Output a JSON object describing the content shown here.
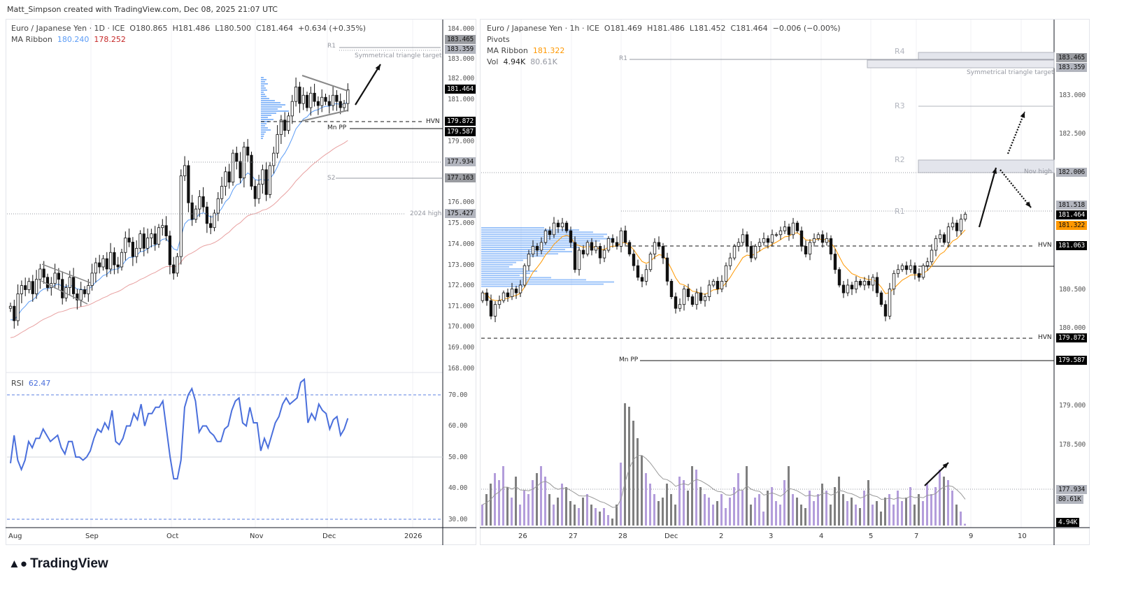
{
  "header": {
    "attribution": "Matt_Simpson created with TradingView.com, Dec 08, 2025 21:07 UTC"
  },
  "left_chart": {
    "legend": {
      "symbol": "Euro / Japanese Yen · 1D · ICE",
      "open": "O180.865",
      "high": "H181.486",
      "low": "L180.500",
      "close": "C181.464",
      "change": "+0.634 (+0.35%)"
    },
    "ma_ribbon": {
      "label": "MA Ribbon",
      "fast": "180.240",
      "slow": "178.252",
      "fast_color": "#5b9cf6",
      "slow_color": "#c62828"
    },
    "annotations": {
      "r1": "R1",
      "triangle_target": "Symmetrical triangle target",
      "hvn": "HVN",
      "mn_pp": "Mn PP",
      "s2": "S2",
      "high_2024": "2024 high"
    },
    "price_axis": [
      "184.000",
      "183.000",
      "182.000",
      "181.000",
      "179.000",
      "176.000",
      "175.000",
      "174.000",
      "173.000",
      "172.000",
      "171.000",
      "170.000",
      "169.000",
      "168.000"
    ],
    "badges": [
      {
        "value": "183.465",
        "style": "gray"
      },
      {
        "value": "183.359",
        "style": "lgray"
      },
      {
        "value": "181.464",
        "style": "dark"
      },
      {
        "value": "179.872",
        "style": "dark"
      },
      {
        "value": "179.587",
        "style": "dark"
      },
      {
        "value": "177.934",
        "style": "lgray"
      },
      {
        "value": "177.163",
        "style": "gray"
      },
      {
        "value": "175.427",
        "style": "lgray"
      }
    ],
    "rsi": {
      "label": "RSI",
      "value": "62.47",
      "color": "#4a6fdc",
      "axis": [
        "70.00",
        "60.00",
        "50.00",
        "40.00",
        "30.00"
      ]
    },
    "time_axis": [
      "Aug",
      "Sep",
      "Oct",
      "Nov",
      "Dec",
      "2026"
    ]
  },
  "right_chart": {
    "legend": {
      "symbol": "Euro / Japanese Yen · 1h · ICE",
      "open": "O181.469",
      "high": "H181.486",
      "low": "L181.452",
      "close": "C181.464",
      "change": "−0.006 (−0.00%)"
    },
    "pivots_label": "Pivots",
    "ma_ribbon": {
      "label": "MA Ribbon",
      "value": "181.322",
      "color": "#ff9800"
    },
    "volume": {
      "label": "Vol",
      "value": "4.94K",
      "ma": "80.61K"
    },
    "annotations": {
      "r4": "R4",
      "r3": "R3",
      "r2": "R2",
      "r1_top": "R1",
      "r1": "R1",
      "triangle_target": "Symmetrical triangle target",
      "nov_high": "Nov high",
      "hvn_1": "HVN",
      "hvn_2": "HVN",
      "mn_pp": "Mn PP"
    },
    "price_axis": [
      "183.000",
      "182.500",
      "180.500",
      "180.000",
      "179.000",
      "178.500"
    ],
    "badges": [
      {
        "value": "183.465",
        "style": "gray"
      },
      {
        "value": "183.359",
        "style": "lgray"
      },
      {
        "value": "182.006",
        "style": "lgray"
      },
      {
        "value": "181.518",
        "style": "lgray"
      },
      {
        "value": "181.464",
        "style": "dark"
      },
      {
        "value": "181.322",
        "style": "orange"
      },
      {
        "value": "181.063",
        "style": "dark"
      },
      {
        "value": "179.872",
        "style": "dark"
      },
      {
        "value": "179.587",
        "style": "dark"
      },
      {
        "value": "177.934",
        "style": "lgray"
      },
      {
        "value": "80.61K",
        "style": "lgray"
      },
      {
        "value": "4.94K",
        "style": "dark"
      }
    ],
    "time_axis": [
      "26",
      "27",
      "28",
      "Dec",
      "2",
      "3",
      "4",
      "5",
      "7",
      "9",
      "10"
    ]
  },
  "logo": "TradingView",
  "chart_data": [
    {
      "type": "candlestick",
      "title": "Euro / Japanese Yen · 1D · ICE",
      "x_range": [
        "Aug 2025",
        "Dec 08 2025"
      ],
      "ylim": [
        168,
        184
      ],
      "closes": [
        171.0,
        170.3,
        171.6,
        172.0,
        171.8,
        172.2,
        171.6,
        172.3,
        172.8,
        172.4,
        171.9,
        172.1,
        172.6,
        172.3,
        171.4,
        171.9,
        172.4,
        171.6,
        171.3,
        171.8,
        171.6,
        172.0,
        172.6,
        173.1,
        172.9,
        173.3,
        172.8,
        173.6,
        173.0,
        172.9,
        173.6,
        174.3,
        174.1,
        173.4,
        173.8,
        174.5,
        173.8,
        174.3,
        174.5,
        174.0,
        174.8,
        174.9,
        174.4,
        173.0,
        172.6,
        173.4,
        177.3,
        177.8,
        176.0,
        175.2,
        175.7,
        176.3,
        175.8,
        175.0,
        174.8,
        175.5,
        176.2,
        176.8,
        177.5,
        177.0,
        178.4,
        178.0,
        177.2,
        178.7,
        178.3,
        176.8,
        176.2,
        176.9,
        177.6,
        176.4,
        177.8,
        178.4,
        179.3,
        180.0,
        179.5,
        180.2,
        180.9,
        181.6,
        180.8,
        181.2,
        180.6,
        181.3,
        180.9,
        180.7,
        181.1,
        180.9,
        180.7,
        181.2,
        180.9,
        180.6,
        180.8,
        181.464
      ],
      "levels": {
        "R1": 183.359,
        "triangle_target": 183.465,
        "HVN": 179.872,
        "Mn PP": 179.587,
        "S2": 177.163,
        "2024 high": 175.427,
        "dotted": 177.934
      }
    },
    {
      "type": "line",
      "title": "RSI",
      "ylim": [
        25,
        78
      ],
      "bands": [
        30,
        50,
        70
      ],
      "values": [
        48,
        57,
        49,
        46,
        49,
        55,
        53,
        56,
        56,
        59,
        57,
        55,
        56,
        57,
        53,
        51,
        55,
        55,
        50,
        50,
        49,
        50,
        52,
        56,
        59,
        58,
        61,
        59,
        65,
        55,
        54,
        56,
        60,
        60,
        64,
        62,
        67,
        60,
        64,
        64,
        66,
        66,
        68,
        59,
        50,
        43,
        43,
        49,
        66,
        70,
        72,
        68,
        58,
        60,
        60,
        58,
        57,
        55,
        55,
        59,
        60,
        65,
        68,
        69,
        61,
        60,
        66,
        61,
        61,
        52,
        56,
        53,
        57,
        61,
        63,
        67,
        69,
        67,
        68,
        69,
        74,
        75,
        61,
        64,
        62,
        67,
        65,
        64,
        59,
        62,
        63,
        57,
        59,
        62.47
      ]
    },
    {
      "type": "candlestick",
      "title": "Euro / Japanese Yen · 1h · ICE",
      "x_range": [
        "Nov 25 2025",
        "Dec 08 2025 21:00"
      ],
      "ylim": [
        177.6,
        183.9
      ],
      "closes": [
        180.45,
        180.35,
        180.15,
        180.3,
        180.35,
        180.45,
        180.4,
        180.5,
        180.45,
        180.55,
        180.8,
        180.95,
        181.05,
        181.0,
        181.1,
        181.25,
        181.2,
        181.35,
        181.3,
        181.35,
        181.25,
        181.1,
        180.75,
        181.0,
        180.95,
        181.1,
        181.0,
        181.05,
        180.9,
        181.0,
        181.15,
        181.1,
        181.05,
        181.25,
        181.1,
        180.95,
        180.8,
        180.65,
        180.6,
        180.75,
        180.95,
        181.1,
        181.05,
        180.9,
        180.6,
        180.4,
        180.25,
        180.3,
        180.5,
        180.4,
        180.3,
        180.45,
        180.35,
        180.4,
        180.55,
        180.6,
        180.5,
        180.6,
        180.8,
        180.9,
        181.05,
        181.1,
        181.2,
        181.05,
        180.9,
        181.05,
        181.1,
        181.15,
        181.1,
        181.2,
        181.2,
        181.25,
        181.3,
        181.2,
        181.35,
        181.25,
        181.05,
        180.95,
        181.1,
        181.15,
        181.2,
        181.1,
        181.15,
        180.95,
        180.75,
        180.55,
        180.45,
        180.55,
        180.5,
        180.6,
        180.55,
        180.6,
        180.55,
        180.65,
        180.45,
        180.3,
        180.15,
        180.5,
        180.7,
        180.75,
        180.8,
        180.75,
        180.8,
        180.7,
        180.65,
        180.8,
        180.85,
        181.0,
        181.15,
        181.2,
        181.1,
        181.3,
        181.35,
        181.25,
        181.4,
        181.464
      ],
      "volume_k": [
        60,
        90,
        120,
        150,
        130,
        170,
        110,
        80,
        140,
        60,
        100,
        90,
        130,
        150,
        170,
        140,
        90,
        60,
        80,
        120,
        110,
        70,
        60,
        50,
        80,
        90,
        60,
        50,
        40,
        50,
        30,
        20,
        60,
        180,
        350,
        340,
        300,
        250,
        200,
        150,
        120,
        90,
        70,
        80,
        120,
        90,
        60,
        140,
        130,
        100,
        170,
        160,
        110,
        90,
        80,
        60,
        70,
        90,
        50,
        80,
        110,
        150,
        100,
        170,
        60,
        80,
        90,
        40,
        100,
        110,
        70,
        60,
        130,
        170,
        90,
        80,
        60,
        50,
        100,
        70,
        90,
        120,
        100,
        60,
        110,
        140,
        90,
        70,
        80,
        60,
        50,
        100,
        130,
        60,
        70,
        40,
        80,
        90,
        60,
        100,
        70,
        80,
        110,
        60,
        90,
        70,
        120,
        90,
        110,
        160,
        140,
        130,
        100,
        60,
        40,
        5
      ],
      "levels": {
        "R4": 183.465,
        "R1_top": 183.359,
        "R3": 182.85,
        "R2": 182.15,
        "Nov high": 182.006,
        "R1": 181.518,
        "HVN_1": 181.063,
        "HVN_2": 179.872,
        "Mn PP": 179.587
      }
    }
  ]
}
